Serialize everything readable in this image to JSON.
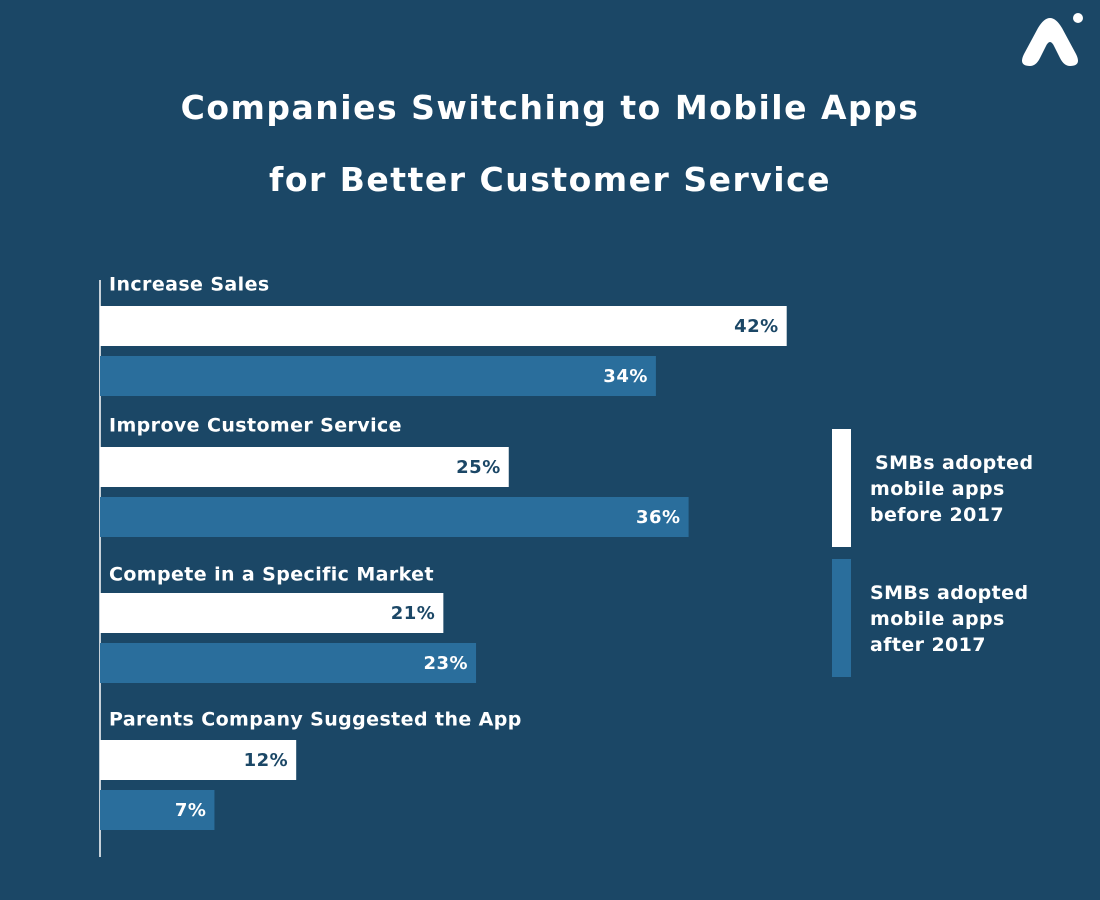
{
  "title_lines": [
    "Companies Switching to Mobile Apps",
    "for Better Customer Service"
  ],
  "logo_icon": "brand-logo-icon",
  "colors": {
    "background": "#1b4766",
    "before_2017": "#ffffff",
    "after_2017": "#2a6e9c",
    "text_light": "#ffffff",
    "text_dark": "#1b4766"
  },
  "legend": {
    "placement": "right",
    "before_lines": [
      "SMBs adopted",
      "mobile apps",
      "before 2017"
    ],
    "after_lines": [
      "SMBs adopted",
      "mobile apps",
      "after 2017"
    ]
  },
  "chart_data": {
    "type": "bar",
    "orientation": "horizontal",
    "title": "Companies Switching to Mobile Apps for Better Customer Service",
    "categories": [
      "Increase Sales",
      "Improve Customer Service",
      "Compete in a Specific Market",
      "Parents Company Suggested the App"
    ],
    "series": [
      {
        "name": "SMBs adopted mobile apps before 2017",
        "values": [
          42,
          25,
          21,
          12
        ],
        "color": "#ffffff"
      },
      {
        "name": "SMBs adopted mobile apps after 2017",
        "values": [
          34,
          36,
          23,
          7
        ],
        "color": "#2a6e9c"
      }
    ],
    "value_labels": [
      [
        "42%",
        "25%",
        "21%",
        "12%"
      ],
      [
        "34%",
        "36%",
        "23%",
        "7%"
      ]
    ],
    "unit": "%",
    "xlim": [
      0,
      60
    ],
    "grid": false
  }
}
